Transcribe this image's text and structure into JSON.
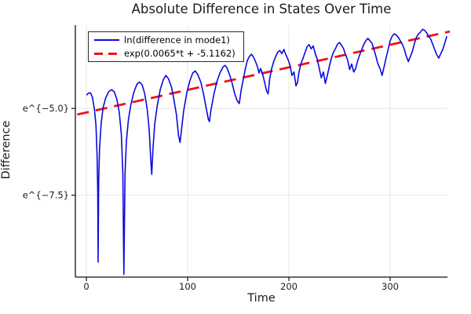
{
  "figure": {
    "background": "#ffffff"
  },
  "chart_data": {
    "type": "line",
    "title": "Absolute Difference in States Over Time",
    "xlabel": "Time",
    "ylabel": "Difference",
    "x_range": [
      -10.9,
      356.6
    ],
    "y_range_ln": [
      -9.86,
      -2.6
    ],
    "grid": true,
    "legend_position": "top-left",
    "x_ticks": [
      {
        "value": 0,
        "label": "0"
      },
      {
        "value": 100,
        "label": "100"
      },
      {
        "value": 200,
        "label": "200"
      },
      {
        "value": 300,
        "label": "300"
      }
    ],
    "y_ticks": [
      {
        "value": -5.0,
        "label": "e^{−5.0}"
      },
      {
        "value": -7.5,
        "label": "e^{−7.5}"
      }
    ],
    "colors": {
      "series": "#0a0ae0",
      "fit": "#f51010",
      "grid": "#e8e8e8",
      "axis": "#111111",
      "text": "#1a1a1a"
    },
    "series": [
      {
        "name": "ln(difference in mode1)",
        "style": "solid",
        "points": [
          [
            0,
            -4.62
          ],
          [
            2,
            -4.56
          ],
          [
            4,
            -4.55
          ],
          [
            6,
            -4.68
          ],
          [
            8,
            -5.05
          ],
          [
            9.5,
            -5.5
          ],
          [
            10.6,
            -6.4
          ],
          [
            11.2,
            -7.4
          ],
          [
            11.6,
            -9.43
          ],
          [
            12.1,
            -7.1
          ],
          [
            13,
            -6.15
          ],
          [
            14.5,
            -5.45
          ],
          [
            16.5,
            -4.98
          ],
          [
            19,
            -4.7
          ],
          [
            22,
            -4.52
          ],
          [
            25,
            -4.46
          ],
          [
            27.5,
            -4.52
          ],
          [
            30,
            -4.73
          ],
          [
            32.5,
            -5.12
          ],
          [
            34.5,
            -5.75
          ],
          [
            36,
            -6.9
          ],
          [
            37,
            -9.78
          ],
          [
            38.2,
            -6.85
          ],
          [
            39.5,
            -5.95
          ],
          [
            41.5,
            -5.32
          ],
          [
            44,
            -4.88
          ],
          [
            47,
            -4.52
          ],
          [
            50,
            -4.3
          ],
          [
            52.5,
            -4.24
          ],
          [
            55,
            -4.32
          ],
          [
            57.5,
            -4.56
          ],
          [
            60,
            -5.0
          ],
          [
            62,
            -5.6
          ],
          [
            63.5,
            -6.45
          ],
          [
            64.5,
            -6.9
          ],
          [
            65.8,
            -6.15
          ],
          [
            67.5,
            -5.45
          ],
          [
            70,
            -4.92
          ],
          [
            73,
            -4.45
          ],
          [
            76,
            -4.17
          ],
          [
            78.5,
            -4.05
          ],
          [
            81,
            -4.14
          ],
          [
            84,
            -4.38
          ],
          [
            86.5,
            -4.75
          ],
          [
            89,
            -5.2
          ],
          [
            91,
            -5.78
          ],
          [
            92.5,
            -5.98
          ],
          [
            94,
            -5.6
          ],
          [
            96,
            -5.08
          ],
          [
            99,
            -4.58
          ],
          [
            102,
            -4.22
          ],
          [
            105,
            -3.98
          ],
          [
            107.5,
            -3.92
          ],
          [
            110,
            -4.02
          ],
          [
            113,
            -4.24
          ],
          [
            115.5,
            -4.55
          ],
          [
            118,
            -4.95
          ],
          [
            120.5,
            -5.32
          ],
          [
            121.5,
            -5.38
          ],
          [
            123,
            -5.05
          ],
          [
            126,
            -4.58
          ],
          [
            129,
            -4.22
          ],
          [
            132,
            -3.97
          ],
          [
            135,
            -3.8
          ],
          [
            137,
            -3.76
          ],
          [
            139,
            -3.84
          ],
          [
            141.5,
            -4.04
          ],
          [
            144,
            -4.28
          ],
          [
            146.5,
            -4.58
          ],
          [
            149,
            -4.78
          ],
          [
            151,
            -4.86
          ],
          [
            153,
            -4.45
          ],
          [
            155,
            -4.15
          ],
          [
            157,
            -3.85
          ],
          [
            159,
            -3.62
          ],
          [
            161,
            -3.5
          ],
          [
            163,
            -3.44
          ],
          [
            165,
            -3.52
          ],
          [
            167,
            -3.65
          ],
          [
            169,
            -3.8
          ],
          [
            170.5,
            -3.98
          ],
          [
            172,
            -3.85
          ],
          [
            174,
            -4.0
          ],
          [
            176,
            -4.25
          ],
          [
            178,
            -4.5
          ],
          [
            179.5,
            -4.58
          ],
          [
            181,
            -4.15
          ],
          [
            183,
            -3.85
          ],
          [
            185,
            -3.65
          ],
          [
            187,
            -3.5
          ],
          [
            189,
            -3.38
          ],
          [
            191,
            -3.33
          ],
          [
            193,
            -3.42
          ],
          [
            195,
            -3.3
          ],
          [
            197,
            -3.45
          ],
          [
            199,
            -3.58
          ],
          [
            201,
            -3.75
          ],
          [
            203,
            -4.05
          ],
          [
            205,
            -3.95
          ],
          [
            207,
            -4.35
          ],
          [
            208.5,
            -4.25
          ],
          [
            210,
            -3.95
          ],
          [
            212,
            -3.7
          ],
          [
            214,
            -3.55
          ],
          [
            216,
            -3.38
          ],
          [
            218,
            -3.22
          ],
          [
            220,
            -3.16
          ],
          [
            222,
            -3.28
          ],
          [
            224,
            -3.2
          ],
          [
            226,
            -3.42
          ],
          [
            228,
            -3.58
          ],
          [
            230,
            -3.85
          ],
          [
            232,
            -4.12
          ],
          [
            234,
            -3.95
          ],
          [
            236,
            -4.28
          ],
          [
            238,
            -4.05
          ],
          [
            240,
            -3.78
          ],
          [
            242,
            -3.55
          ],
          [
            244,
            -3.38
          ],
          [
            246,
            -3.28
          ],
          [
            248,
            -3.15
          ],
          [
            250,
            -3.1
          ],
          [
            252,
            -3.18
          ],
          [
            254,
            -3.28
          ],
          [
            256,
            -3.45
          ],
          [
            258,
            -3.6
          ],
          [
            260,
            -3.88
          ],
          [
            262,
            -3.72
          ],
          [
            264,
            -3.95
          ],
          [
            266,
            -3.85
          ],
          [
            268,
            -3.62
          ],
          [
            270,
            -3.45
          ],
          [
            272,
            -3.3
          ],
          [
            274,
            -3.15
          ],
          [
            276,
            -3.05
          ],
          [
            278,
            -2.98
          ],
          [
            280,
            -3.05
          ],
          [
            282,
            -3.12
          ],
          [
            284,
            -3.3
          ],
          [
            286,
            -3.5
          ],
          [
            288,
            -3.72
          ],
          [
            290,
            -3.85
          ],
          [
            292,
            -4.05
          ],
          [
            294,
            -3.8
          ],
          [
            296,
            -3.55
          ],
          [
            298,
            -3.3
          ],
          [
            300,
            -3.05
          ],
          [
            302,
            -2.92
          ],
          [
            304,
            -2.85
          ],
          [
            306,
            -2.88
          ],
          [
            308,
            -2.95
          ],
          [
            310,
            -3.05
          ],
          [
            312,
            -3.15
          ],
          [
            314,
            -3.3
          ],
          [
            316,
            -3.5
          ],
          [
            318,
            -3.65
          ],
          [
            320,
            -3.5
          ],
          [
            322,
            -3.35
          ],
          [
            324,
            -3.12
          ],
          [
            326,
            -2.95
          ],
          [
            328,
            -2.85
          ],
          [
            330,
            -2.8
          ],
          [
            332,
            -2.72
          ],
          [
            334,
            -2.75
          ],
          [
            336,
            -2.82
          ],
          [
            338,
            -2.92
          ],
          [
            340,
            -3.0
          ],
          [
            342,
            -3.15
          ],
          [
            344,
            -3.3
          ],
          [
            346,
            -3.45
          ],
          [
            348,
            -3.55
          ],
          [
            350,
            -3.42
          ],
          [
            352,
            -3.3
          ],
          [
            354,
            -3.12
          ],
          [
            356,
            -2.92
          ]
        ]
      },
      {
        "name": "exp(0.0065*t + -5.1162)",
        "style": "dashed",
        "slope": 0.0065,
        "intercept": -5.1162,
        "t_start": -9,
        "t_end": 359
      }
    ],
    "legend": {
      "entries": [
        "ln(difference in mode1)",
        "exp(0.0065*t + -5.1162)"
      ]
    }
  }
}
